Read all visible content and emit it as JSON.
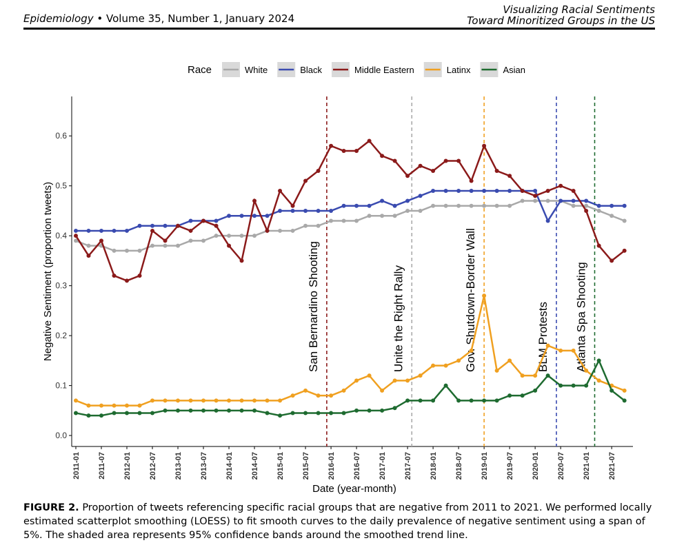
{
  "header": {
    "journal": "Epidemiology",
    "issue": "Volume 35, Number 1, January 2024",
    "running_title": [
      "Visualizing Racial Sentiments",
      "Toward Minoritized Groups in the US"
    ]
  },
  "chart_data": {
    "type": "line",
    "x_label": "Date (year-month)",
    "y_label": "Negative Sentiment (proportion tweets)",
    "legend_title": "Race",
    "legend": "top",
    "x": [
      "2011-01",
      "2011-04",
      "2011-07",
      "2011-10",
      "2012-01",
      "2012-04",
      "2012-07",
      "2012-10",
      "2013-01",
      "2013-04",
      "2013-07",
      "2013-10",
      "2014-01",
      "2014-04",
      "2014-07",
      "2014-10",
      "2015-01",
      "2015-04",
      "2015-07",
      "2015-10",
      "2016-01",
      "2016-04",
      "2016-07",
      "2016-10",
      "2017-01",
      "2017-04",
      "2017-07",
      "2017-10",
      "2018-01",
      "2018-04",
      "2018-07",
      "2018-10",
      "2019-01",
      "2019-04",
      "2019-07",
      "2019-10",
      "2020-01",
      "2020-04",
      "2020-07",
      "2020-10",
      "2021-01",
      "2021-04",
      "2021-07",
      "2021-10"
    ],
    "xlim": [
      "2011-01",
      "2021-12"
    ],
    "xticks": [
      "2011-01",
      "2011-07",
      "2012-01",
      "2012-07",
      "2013-01",
      "2013-07",
      "2014-01",
      "2014-07",
      "2015-01",
      "2015-07",
      "2016-01",
      "2016-07",
      "2017-01",
      "2017-07",
      "2018-01",
      "2018-07",
      "2019-01",
      "2019-07",
      "2020-01",
      "2020-07",
      "2021-01",
      "2021-07"
    ],
    "ylim": [
      -0.022,
      0.679
    ],
    "yticks": [
      {
        "value": 0,
        "label": "0.0"
      },
      0.1,
      0.2,
      0.3,
      0.4,
      0.5,
      0.6
    ],
    "series": [
      {
        "name": "White",
        "color": "#a9a9a9",
        "values": [
          0.39,
          0.38,
          0.38,
          0.37,
          0.37,
          0.37,
          0.38,
          0.38,
          0.38,
          0.39,
          0.39,
          0.4,
          0.4,
          0.4,
          0.4,
          0.41,
          0.41,
          0.41,
          0.42,
          0.42,
          0.43,
          0.43,
          0.43,
          0.44,
          0.44,
          0.44,
          0.45,
          0.45,
          0.46,
          0.46,
          0.46,
          0.46,
          0.46,
          0.46,
          0.46,
          0.47,
          0.47,
          0.47,
          0.47,
          0.46,
          0.46,
          0.45,
          0.44,
          0.43
        ]
      },
      {
        "name": "Black",
        "color": "#3a4bb0",
        "values": [
          0.41,
          0.41,
          0.41,
          0.41,
          0.41,
          0.42,
          0.42,
          0.42,
          0.42,
          0.43,
          0.43,
          0.43,
          0.44,
          0.44,
          0.44,
          0.44,
          0.45,
          0.45,
          0.45,
          0.45,
          0.45,
          0.46,
          0.46,
          0.46,
          0.47,
          0.46,
          0.47,
          0.48,
          0.49,
          0.49,
          0.49,
          0.49,
          0.49,
          0.49,
          0.49,
          0.49,
          0.49,
          0.43,
          0.47,
          0.47,
          0.47,
          0.46,
          0.46,
          0.46
        ]
      },
      {
        "name": "Middle Eastern",
        "color": "#8b1a1a",
        "values": [
          0.4,
          0.36,
          0.39,
          0.32,
          0.31,
          0.32,
          0.41,
          0.39,
          0.42,
          0.41,
          0.43,
          0.42,
          0.38,
          0.35,
          0.47,
          0.41,
          0.49,
          0.46,
          0.51,
          0.53,
          0.58,
          0.57,
          0.57,
          0.59,
          0.56,
          0.55,
          0.52,
          0.54,
          0.53,
          0.55,
          0.55,
          0.51,
          0.58,
          0.53,
          0.52,
          0.49,
          0.48,
          0.49,
          0.5,
          0.49,
          0.45,
          0.38,
          0.35,
          0.37
        ]
      },
      {
        "name": "Latinx",
        "color": "#f0a020",
        "values": [
          0.07,
          0.06,
          0.06,
          0.06,
          0.06,
          0.06,
          0.07,
          0.07,
          0.07,
          0.07,
          0.07,
          0.07,
          0.07,
          0.07,
          0.07,
          0.07,
          0.07,
          0.08,
          0.09,
          0.08,
          0.08,
          0.09,
          0.11,
          0.12,
          0.09,
          0.11,
          0.11,
          0.12,
          0.14,
          0.14,
          0.15,
          0.17,
          0.28,
          0.13,
          0.15,
          0.12,
          0.12,
          0.18,
          0.17,
          0.17,
          0.13,
          0.11,
          0.1,
          0.09
        ]
      },
      {
        "name": "Asian",
        "color": "#1e6b30",
        "values": [
          0.045,
          0.04,
          0.04,
          0.045,
          0.045,
          0.045,
          0.045,
          0.05,
          0.05,
          0.05,
          0.05,
          0.05,
          0.05,
          0.05,
          0.05,
          0.045,
          0.04,
          0.045,
          0.045,
          0.045,
          0.045,
          0.045,
          0.05,
          0.05,
          0.05,
          0.055,
          0.07,
          0.07,
          0.07,
          0.1,
          0.07,
          0.07,
          0.07,
          0.07,
          0.08,
          0.08,
          0.09,
          0.12,
          0.1,
          0.1,
          0.1,
          0.15,
          0.09,
          0.07
        ]
      }
    ],
    "annotations": [
      {
        "label": "San Bernardino Shooting",
        "x": "2015-12",
        "color": "#8b1a1a"
      },
      {
        "label": "Unite the Right Rally",
        "x": "2017-08",
        "color": "#a9a9a9"
      },
      {
        "label": "Gov. Shutdown-Border Wall",
        "x": "2019-01",
        "color": "#f0a020"
      },
      {
        "label": "BLM Protests",
        "x": "2020-06",
        "color": "#3a4bb0"
      },
      {
        "label": "Atlanta Spa Shooting",
        "x": "2021-03",
        "color": "#1e6b30"
      }
    ]
  },
  "caption": {
    "label": "FIGURE 2.",
    "text": "Proportion of tweets referencing specific racial groups that are negative from 2011 to 2021. We performed locally estimated scatterplot smoothing (LOESS) to fit smooth curves to the daily prevalence of negative sentiment using a span of 5%. The shaded area represents 95% confidence bands around the smoothed trend line."
  }
}
